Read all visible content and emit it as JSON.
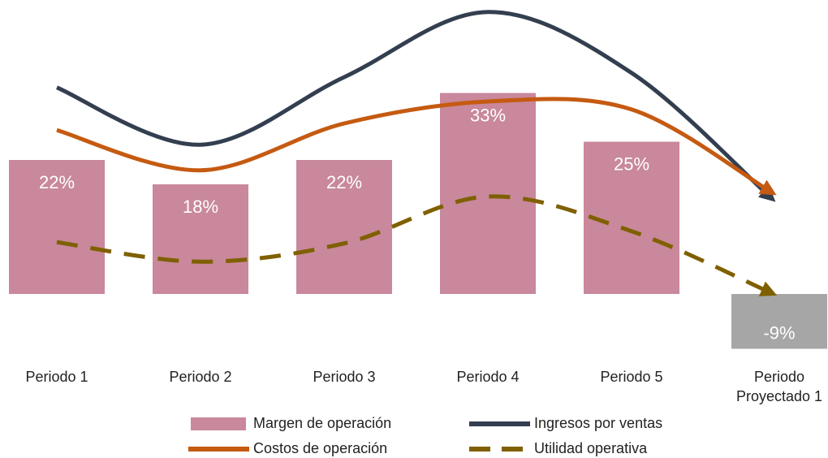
{
  "chart_data": {
    "type": "bar",
    "categories": [
      "Periodo 1",
      "Periodo 2",
      "Periodo 3",
      "Periodo 4",
      "Periodo 5",
      "Periodo Proyectado 1"
    ],
    "ylim": [
      -12,
      48
    ],
    "series": [
      {
        "name": "Margen de operación",
        "type": "bar",
        "colors": [
          "#c9889b",
          "#c9889b",
          "#c9889b",
          "#c9889b",
          "#c9889b",
          "#a6a6a6"
        ],
        "values": [
          22,
          18,
          22,
          33,
          25,
          -9
        ],
        "value_labels": [
          "22%",
          "18%",
          "22%",
          "33%",
          "25%",
          "-9%"
        ]
      },
      {
        "name": "Ingresos por ventas",
        "type": "line",
        "color": "#333f50",
        "values": [
          33.9,
          24.5,
          35.6,
          46.3,
          36.3,
          16
        ]
      },
      {
        "name": "Costos de operación",
        "type": "line",
        "color": "#c55a11",
        "values": [
          26.9,
          20.3,
          28,
          31.6,
          30.3,
          16.9
        ]
      },
      {
        "name": "Utilidad operativa",
        "type": "line",
        "color": "#7f6000",
        "dashed": true,
        "values": [
          8.5,
          5.3,
          8.3,
          16,
          10.3,
          0.3
        ]
      }
    ]
  }
}
